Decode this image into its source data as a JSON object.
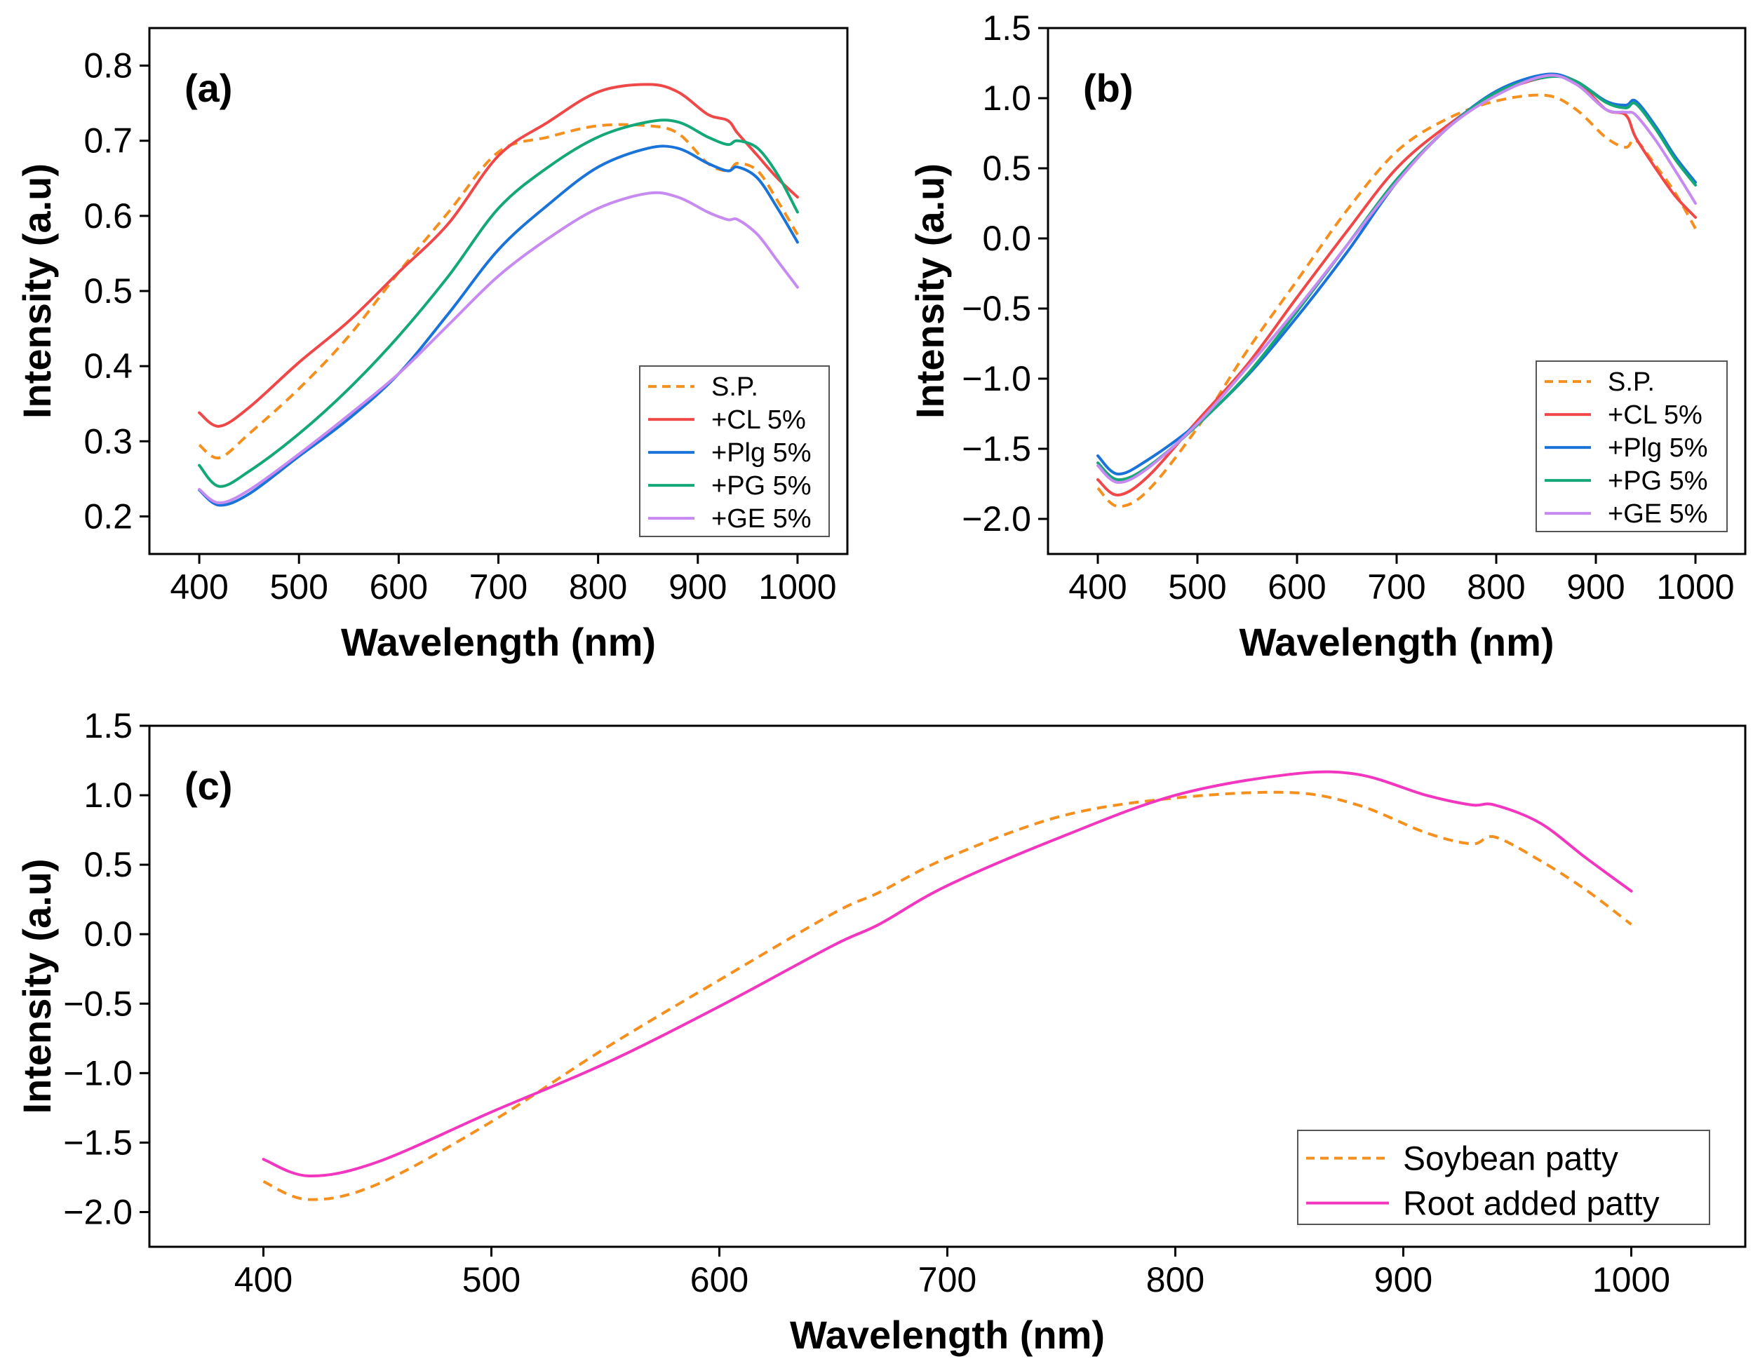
{
  "chart_data": [
    {
      "id": "a",
      "type": "line",
      "panel_label": "(a)",
      "xlabel": "Wavelength (nm)",
      "ylabel": "Intensity (a.u)",
      "xlim": [
        350,
        1050
      ],
      "ylim": [
        0.15,
        0.85
      ],
      "xticks": [
        400,
        500,
        600,
        700,
        800,
        900,
        1000
      ],
      "yticks": [
        0.2,
        0.3,
        0.4,
        0.5,
        0.6,
        0.7,
        0.8
      ],
      "xtick_labels": [
        "400",
        "500",
        "600",
        "700",
        "800",
        "900",
        "1000"
      ],
      "ytick_labels": [
        "0.2",
        "0.3",
        "0.4",
        "0.5",
        "0.6",
        "0.7",
        "0.8"
      ],
      "legend_position": "bottom-right",
      "x": [
        400,
        420,
        450,
        500,
        550,
        600,
        650,
        700,
        750,
        800,
        850,
        880,
        910,
        930,
        940,
        960,
        980,
        1000
      ],
      "series": [
        {
          "name": "S.P.",
          "color": "#f5901e",
          "dashed": true,
          "values": [
            0.295,
            0.278,
            0.31,
            0.37,
            0.44,
            0.525,
            0.605,
            0.685,
            0.705,
            0.72,
            0.72,
            0.71,
            0.67,
            0.66,
            0.67,
            0.66,
            0.62,
            0.575
          ]
        },
        {
          "name": "+CL 5%",
          "color": "#f04848",
          "dashed": false,
          "values": [
            0.338,
            0.32,
            0.345,
            0.405,
            0.46,
            0.525,
            0.59,
            0.68,
            0.725,
            0.765,
            0.775,
            0.765,
            0.735,
            0.727,
            0.71,
            0.68,
            0.65,
            0.625
          ]
        },
        {
          "name": "+Plg 5%",
          "color": "#1a73d9",
          "dashed": false,
          "values": [
            0.235,
            0.215,
            0.23,
            0.28,
            0.33,
            0.39,
            0.47,
            0.555,
            0.615,
            0.665,
            0.69,
            0.69,
            0.67,
            0.66,
            0.665,
            0.65,
            0.61,
            0.565
          ]
        },
        {
          "name": "+PG 5%",
          "color": "#14a878",
          "dashed": false,
          "values": [
            0.268,
            0.24,
            0.26,
            0.31,
            0.37,
            0.44,
            0.52,
            0.61,
            0.665,
            0.705,
            0.725,
            0.725,
            0.705,
            0.695,
            0.7,
            0.69,
            0.655,
            0.605
          ]
        },
        {
          "name": "+GE 5%",
          "color": "#c68af0",
          "dashed": false,
          "values": [
            0.236,
            0.218,
            0.235,
            0.283,
            0.335,
            0.39,
            0.455,
            0.52,
            0.57,
            0.61,
            0.63,
            0.625,
            0.605,
            0.595,
            0.595,
            0.575,
            0.54,
            0.505
          ]
        }
      ]
    },
    {
      "id": "b",
      "type": "line",
      "panel_label": "(b)",
      "xlabel": "Wavelength (nm)",
      "ylabel": "Intensity (a.u)",
      "xlim": [
        350,
        1050
      ],
      "ylim": [
        -2.25,
        1.5
      ],
      "xticks": [
        400,
        500,
        600,
        700,
        800,
        900,
        1000
      ],
      "yticks": [
        -2.0,
        -1.5,
        -1.0,
        -0.5,
        0.0,
        0.5,
        1.0,
        1.5
      ],
      "xtick_labels": [
        "400",
        "500",
        "600",
        "700",
        "800",
        "900",
        "1000"
      ],
      "ytick_labels": [
        "−2.0",
        "−1.5",
        "−1.0",
        "−0.5",
        "0.0",
        "0.5",
        "1.0",
        "1.5"
      ],
      "legend_position": "bottom-right",
      "x": [
        400,
        420,
        450,
        500,
        550,
        600,
        650,
        700,
        750,
        800,
        850,
        880,
        910,
        930,
        940,
        960,
        980,
        1000
      ],
      "series": [
        {
          "name": "S.P.",
          "color": "#f5901e",
          "dashed": true,
          "values": [
            -1.78,
            -1.91,
            -1.8,
            -1.35,
            -0.8,
            -0.3,
            0.2,
            0.62,
            0.85,
            0.98,
            1.02,
            0.92,
            0.72,
            0.65,
            0.7,
            0.52,
            0.32,
            0.07
          ]
        },
        {
          "name": "+CL 5%",
          "color": "#f04848",
          "dashed": false,
          "values": [
            -1.72,
            -1.83,
            -1.7,
            -1.3,
            -0.9,
            -0.42,
            0.05,
            0.5,
            0.8,
            1.03,
            1.15,
            1.12,
            0.92,
            0.88,
            0.72,
            0.5,
            0.3,
            0.15
          ]
        },
        {
          "name": "+Plg 5%",
          "color": "#1a73d9",
          "dashed": false,
          "values": [
            -1.55,
            -1.68,
            -1.58,
            -1.32,
            -0.98,
            -0.56,
            -0.1,
            0.4,
            0.78,
            1.05,
            1.17,
            1.12,
            0.98,
            0.95,
            0.98,
            0.8,
            0.58,
            0.4
          ]
        },
        {
          "name": "+PG 5%",
          "color": "#14a878",
          "dashed": false,
          "values": [
            -1.6,
            -1.72,
            -1.63,
            -1.33,
            -0.97,
            -0.52,
            -0.05,
            0.42,
            0.78,
            1.04,
            1.15,
            1.12,
            0.97,
            0.93,
            0.96,
            0.78,
            0.56,
            0.38
          ]
        },
        {
          "name": "+GE 5%",
          "color": "#c68af0",
          "dashed": false,
          "values": [
            -1.62,
            -1.74,
            -1.64,
            -1.32,
            -0.92,
            -0.5,
            -0.05,
            0.4,
            0.78,
            1.02,
            1.16,
            1.1,
            0.92,
            0.9,
            0.88,
            0.7,
            0.48,
            0.25
          ]
        }
      ]
    },
    {
      "id": "c",
      "type": "line",
      "panel_label": "(c)",
      "xlabel": "Wavelength (nm)",
      "ylabel": "Intensity (a.u)",
      "xlim": [
        350,
        1050
      ],
      "ylim": [
        -2.25,
        1.5
      ],
      "xticks": [
        400,
        500,
        600,
        700,
        800,
        900,
        1000
      ],
      "yticks": [
        -2.0,
        -1.5,
        -1.0,
        -0.5,
        0.0,
        0.5,
        1.0,
        1.5
      ],
      "xtick_labels": [
        "400",
        "500",
        "600",
        "700",
        "800",
        "900",
        "1000"
      ],
      "ytick_labels": [
        "−2.0",
        "−1.5",
        "−1.0",
        "−0.5",
        "0.0",
        "0.5",
        "1.0",
        "1.5"
      ],
      "legend_position": "bottom-right",
      "x": [
        400,
        420,
        450,
        500,
        550,
        600,
        650,
        670,
        700,
        750,
        800,
        850,
        880,
        910,
        930,
        940,
        960,
        980,
        1000
      ],
      "series": [
        {
          "name": "Soybean patty",
          "color": "#f5901e",
          "dashed": true,
          "values": [
            -1.78,
            -1.91,
            -1.8,
            -1.35,
            -0.82,
            -0.33,
            0.15,
            0.3,
            0.55,
            0.85,
            0.98,
            1.02,
            0.93,
            0.73,
            0.65,
            0.7,
            0.53,
            0.32,
            0.07
          ]
        },
        {
          "name": "Root added patty",
          "color": "#f236c0",
          "dashed": false,
          "values": [
            -1.62,
            -1.74,
            -1.64,
            -1.28,
            -0.93,
            -0.52,
            -0.08,
            0.07,
            0.35,
            0.7,
            1.0,
            1.15,
            1.15,
            1.0,
            0.93,
            0.93,
            0.8,
            0.55,
            0.31
          ]
        }
      ]
    }
  ]
}
